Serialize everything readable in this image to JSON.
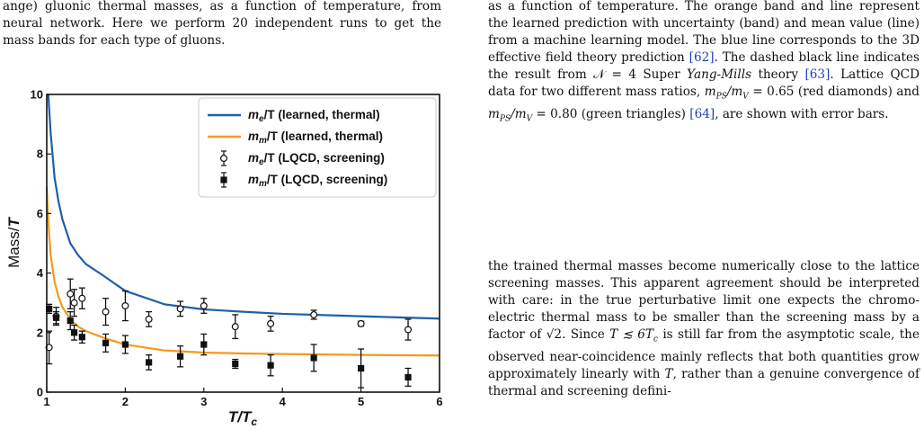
{
  "left_column": {
    "paragraph": "ange) gluonic thermal masses, as a function of temperature, from neural network. Here we perform 20 independent runs to get the mass bands for each type of gluons."
  },
  "right_column": {
    "caption": {
      "p1": "as a function of temperature. The orange band and line represent the learned prediction with uncertainty (band) and mean value (line) from a machine learning model. The blue line corresponds to the 3D effective field theory prediction ",
      "cite1": "[62]",
      "p2": ". The dashed black line indicates the result from ",
      "n_eq": "𝒩 = 4",
      "p3": " Super ",
      "yang_mills": "Yang-Mills",
      "p4": " theory ",
      "cite2": "[63]",
      "p5": ". Lattice QCD data for two different mass ratios, ",
      "ratio1": "m",
      "ratio1_sub": "PS",
      "ratio1_mid": "/m",
      "ratio1_sub2": "V",
      "ratio1_val": " = 0.65",
      "p6": " (red diamonds) and ",
      "ratio2_val": " = 0.80",
      "p7": " (green triangles) ",
      "cite3": "[64]",
      "p8": ", are shown with error bars."
    },
    "body": {
      "p1": "the trained thermal masses become numerically close to the lattice screening masses. This apparent agreement should be interpreted with care: in the true perturbative limit one expects the chromo-electric thermal mass to be smaller than the screening mass by a factor of ",
      "sqrt2": "√2",
      "p2": ". Since ",
      "cond": "T ≲ 6T",
      "cond_sub": "c",
      "p3": " is still far from the asymptotic scale, the observed near-coincidence mainly reflects that both quantities grow approximately linearly with ",
      "T": "T",
      "p4": ", rather than a genuine convergence of thermal and screening defini-"
    }
  },
  "chart_data": {
    "type": "line",
    "xlabel": "T/Tc",
    "xlabel_main": "T/T",
    "xlabel_sub": "c",
    "ylabel": "Mass/T",
    "ylabel_main": "Mass/",
    "ylabel_T": "T",
    "xlim": [
      1,
      6
    ],
    "ylim": [
      0,
      10
    ],
    "xticks": [
      1,
      2,
      3,
      4,
      5,
      6
    ],
    "yticks": [
      0,
      2,
      4,
      6,
      8,
      10
    ],
    "grid": false,
    "legend_position": "top-right",
    "legend": [
      {
        "label": "m_e/T (learned, thermal)",
        "main": "m",
        "sub": "e",
        "rest": "/T (learned, thermal)",
        "marker": "line",
        "color": "#1f5fa8"
      },
      {
        "label": "m_m/T (learned, thermal)",
        "main": "m",
        "sub": "m",
        "rest": "/T (learned, thermal)",
        "marker": "line",
        "color": "#f59a1a"
      },
      {
        "label": "m_e/T (LQCD, screening)",
        "main": "m",
        "sub": "e",
        "rest": "/T (LQCD, screening)",
        "marker": "open-circle",
        "color": "#111111"
      },
      {
        "label": "m_m/T (LQCD, screening)",
        "main": "m",
        "sub": "m",
        "rest": "/T (LQCD, screening)",
        "marker": "filled-square",
        "color": "#111111"
      }
    ],
    "series": [
      {
        "name": "m_e/T (learned, thermal)",
        "kind": "line",
        "color": "#1f5fa8",
        "x": [
          1.02,
          1.05,
          1.1,
          1.15,
          1.2,
          1.3,
          1.4,
          1.5,
          1.7,
          2.0,
          2.5,
          3.0,
          3.5,
          4.0,
          5.0,
          6.0
        ],
        "y": [
          10.0,
          8.7,
          7.2,
          6.4,
          5.8,
          5.0,
          4.6,
          4.3,
          3.95,
          3.4,
          2.95,
          2.78,
          2.7,
          2.63,
          2.55,
          2.47
        ]
      },
      {
        "name": "m_m/T (learned, thermal)",
        "kind": "line",
        "color": "#f59a1a",
        "x": [
          1.0,
          1.02,
          1.05,
          1.1,
          1.15,
          1.2,
          1.3,
          1.4,
          1.5,
          1.75,
          2.0,
          2.5,
          3.0,
          3.5,
          4.0,
          5.0,
          6.0
        ],
        "y": [
          6.9,
          5.7,
          4.6,
          3.7,
          3.2,
          2.85,
          2.45,
          2.2,
          2.05,
          1.8,
          1.6,
          1.4,
          1.33,
          1.3,
          1.28,
          1.25,
          1.23
        ]
      },
      {
        "name": "m_e/T (LQCD, screening)",
        "kind": "errorbar",
        "marker": "open-circle",
        "x": [
          1.03,
          1.12,
          1.3,
          1.35,
          1.45,
          1.75,
          2.0,
          2.3,
          2.7,
          3.0,
          3.4,
          3.85,
          4.4,
          5.0,
          5.6
        ],
        "y": [
          1.5,
          2.55,
          3.3,
          3.0,
          3.15,
          2.7,
          2.9,
          2.45,
          2.8,
          2.9,
          2.2,
          2.3,
          2.6,
          2.3,
          2.1
        ],
        "err": [
          0.55,
          0.3,
          0.5,
          0.45,
          0.35,
          0.45,
          0.5,
          0.25,
          0.25,
          0.25,
          0.4,
          0.25,
          0.15,
          0.08,
          0.35
        ]
      },
      {
        "name": "m_m/T (LQCD, screening)",
        "kind": "errorbar",
        "marker": "filled-square",
        "x": [
          1.03,
          1.12,
          1.3,
          1.35,
          1.45,
          1.75,
          2.0,
          2.3,
          2.7,
          3.0,
          3.4,
          3.85,
          4.4,
          5.0,
          5.6
        ],
        "y": [
          2.8,
          2.5,
          2.4,
          2.0,
          1.85,
          1.65,
          1.6,
          1.0,
          1.2,
          1.6,
          0.95,
          0.9,
          1.15,
          0.8,
          0.5
        ],
        "err": [
          0.15,
          0.2,
          0.3,
          0.25,
          0.2,
          0.3,
          0.3,
          0.25,
          0.35,
          0.35,
          0.15,
          0.35,
          0.45,
          0.65,
          0.3
        ]
      }
    ]
  }
}
